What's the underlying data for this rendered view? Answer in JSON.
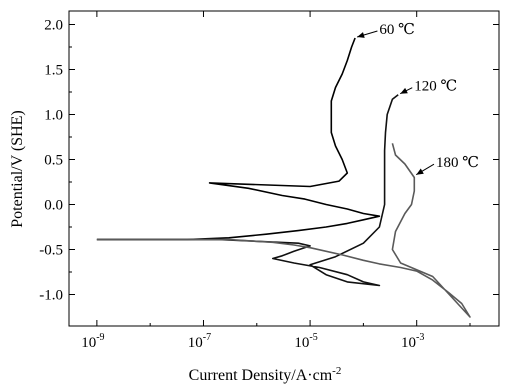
{
  "chart_data": {
    "type": "line",
    "xlabel": "Current Density/A·cm",
    "xlabel_sup": "-2",
    "ylabel": "Potential/V (SHE)",
    "xscale": "log",
    "xlim": [
      3e-10,
      0.035
    ],
    "ylim": [
      -1.35,
      2.15
    ],
    "x_ticks": [
      {
        "base": "10",
        "exp": "-9"
      },
      {
        "base": "10",
        "exp": "-7"
      },
      {
        "base": "10",
        "exp": "-5"
      },
      {
        "base": "10",
        "exp": "-3"
      }
    ],
    "x_tick_values": [
      1e-09,
      1e-07,
      1e-05,
      0.001
    ],
    "y_ticks": [
      "-1.0",
      "-0.5",
      "0.0",
      "0.5",
      "1.0",
      "1.5",
      "2.0"
    ],
    "y_tick_values": [
      -1.0,
      -0.5,
      0.0,
      0.5,
      1.0,
      1.5,
      2.0
    ],
    "grid": false,
    "legend": "none",
    "series": [
      {
        "name": "60 ℃",
        "color": "#000000",
        "points": [
          [
            1e-09,
            -0.39
          ],
          [
            5e-08,
            -0.39
          ],
          [
            3e-07,
            -0.37
          ],
          [
            1.5e-06,
            -0.33
          ],
          [
            6e-06,
            -0.29
          ],
          [
            2e-05,
            -0.25
          ],
          [
            5e-05,
            -0.21
          ],
          [
            0.0001,
            -0.17
          ],
          [
            0.0002,
            -0.13
          ],
          [
            0.0001,
            -0.1
          ],
          [
            5e-05,
            -0.05
          ],
          [
            2e-05,
            0.0
          ],
          [
            8e-06,
            0.06
          ],
          [
            3e-06,
            0.1
          ],
          [
            7e-07,
            0.18
          ],
          [
            1.3e-07,
            0.24
          ],
          [
            1e-05,
            0.2
          ],
          [
            3.5e-05,
            0.26
          ],
          [
            5e-05,
            0.35
          ],
          [
            4e-05,
            0.5
          ],
          [
            3e-05,
            0.65
          ],
          [
            2.5e-05,
            0.8
          ],
          [
            2.5e-05,
            1.0
          ],
          [
            2.5e-05,
            1.15
          ],
          [
            3e-05,
            1.3
          ],
          [
            4e-05,
            1.45
          ],
          [
            5e-05,
            1.6
          ],
          [
            6e-05,
            1.75
          ],
          [
            7e-05,
            1.85
          ]
        ]
      },
      {
        "name": "120 ℃",
        "color": "#111111",
        "points": [
          [
            1e-09,
            -0.39
          ],
          [
            2e-07,
            -0.39
          ],
          [
            6e-06,
            -0.43
          ],
          [
            1e-05,
            -0.46
          ],
          [
            5e-06,
            -0.52
          ],
          [
            3e-06,
            -0.57
          ],
          [
            2e-06,
            -0.6
          ],
          [
            5e-06,
            -0.65
          ],
          [
            1.5e-05,
            -0.7
          ],
          [
            5e-05,
            -0.78
          ],
          [
            0.0001,
            -0.86
          ],
          [
            0.0002,
            -0.9
          ],
          [
            5e-05,
            -0.86
          ],
          [
            2e-05,
            -0.78
          ],
          [
            1e-05,
            -0.67
          ],
          [
            3e-05,
            -0.58
          ],
          [
            0.0001,
            -0.43
          ],
          [
            0.0002,
            -0.25
          ],
          [
            0.00025,
            0.0
          ],
          [
            0.00025,
            0.2
          ],
          [
            0.00025,
            0.4
          ],
          [
            0.00025,
            0.6
          ],
          [
            0.00026,
            0.8
          ],
          [
            0.00028,
            1.0
          ],
          [
            0.00035,
            1.17
          ],
          [
            0.00045,
            1.22
          ]
        ]
      },
      {
        "name": "180 ℃",
        "color": "#5a5a5a",
        "points": [
          [
            1e-09,
            -0.39
          ],
          [
            3e-07,
            -0.39
          ],
          [
            2e-06,
            -0.42
          ],
          [
            5e-06,
            -0.45
          ],
          [
            1e-05,
            -0.48
          ],
          [
            4e-05,
            -0.56
          ],
          [
            0.0001,
            -0.62
          ],
          [
            0.0002,
            -0.66
          ],
          [
            0.0005,
            -0.7
          ],
          [
            0.001,
            -0.74
          ],
          [
            0.002,
            -0.84
          ],
          [
            0.004,
            -0.98
          ],
          [
            0.007,
            -1.1
          ],
          [
            0.01,
            -1.25
          ],
          [
            0.002,
            -0.8
          ],
          [
            0.0005,
            -0.65
          ],
          [
            0.00035,
            -0.5
          ],
          [
            0.0004,
            -0.3
          ],
          [
            0.0006,
            -0.1
          ],
          [
            0.0008,
            0.0
          ],
          [
            0.0009,
            0.15
          ],
          [
            0.0009,
            0.3
          ],
          [
            0.0006,
            0.45
          ],
          [
            0.0004,
            0.55
          ],
          [
            0.00035,
            0.68
          ]
        ]
      }
    ],
    "annotations": [
      {
        "text": "60  ℃",
        "series": 0,
        "at": [
          7e-05,
          1.85
        ],
        "label_at": [
          0.0002,
          1.95
        ]
      },
      {
        "text": "120  ℃",
        "series": 1,
        "at": [
          0.00045,
          1.22
        ],
        "label_at": [
          0.0009,
          1.32
        ]
      },
      {
        "text": "180  ℃",
        "series": 2,
        "at": [
          0.0009,
          0.32
        ],
        "label_at": [
          0.0023,
          0.47
        ]
      }
    ]
  }
}
